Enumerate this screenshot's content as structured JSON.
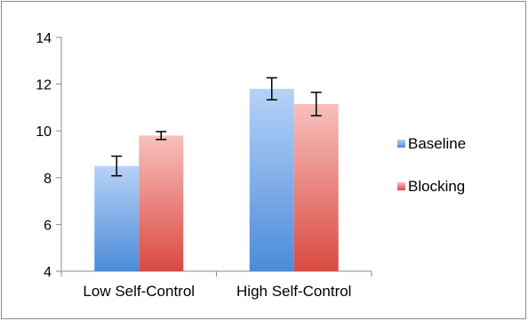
{
  "chart_data": {
    "type": "bar",
    "categories": [
      "Low Self-Control",
      "High Self-Control"
    ],
    "series": [
      {
        "name": "Baseline",
        "values": [
          8.5,
          11.8
        ],
        "error": [
          0.42,
          0.47
        ],
        "color_top": "#b7d2f8",
        "color_bottom": "#4c8bd9"
      },
      {
        "name": "Blocking",
        "values": [
          9.8,
          11.15
        ],
        "error": [
          0.17,
          0.5
        ],
        "color_top": "#f8c0bd",
        "color_bottom": "#d94a40"
      }
    ],
    "title": "",
    "xlabel": "",
    "ylabel": "",
    "ylim": [
      4,
      14
    ],
    "yticks": [
      "4",
      "6",
      "8",
      "10",
      "12",
      "14"
    ],
    "grid": false,
    "legend_position": "right",
    "error_bars": true
  }
}
